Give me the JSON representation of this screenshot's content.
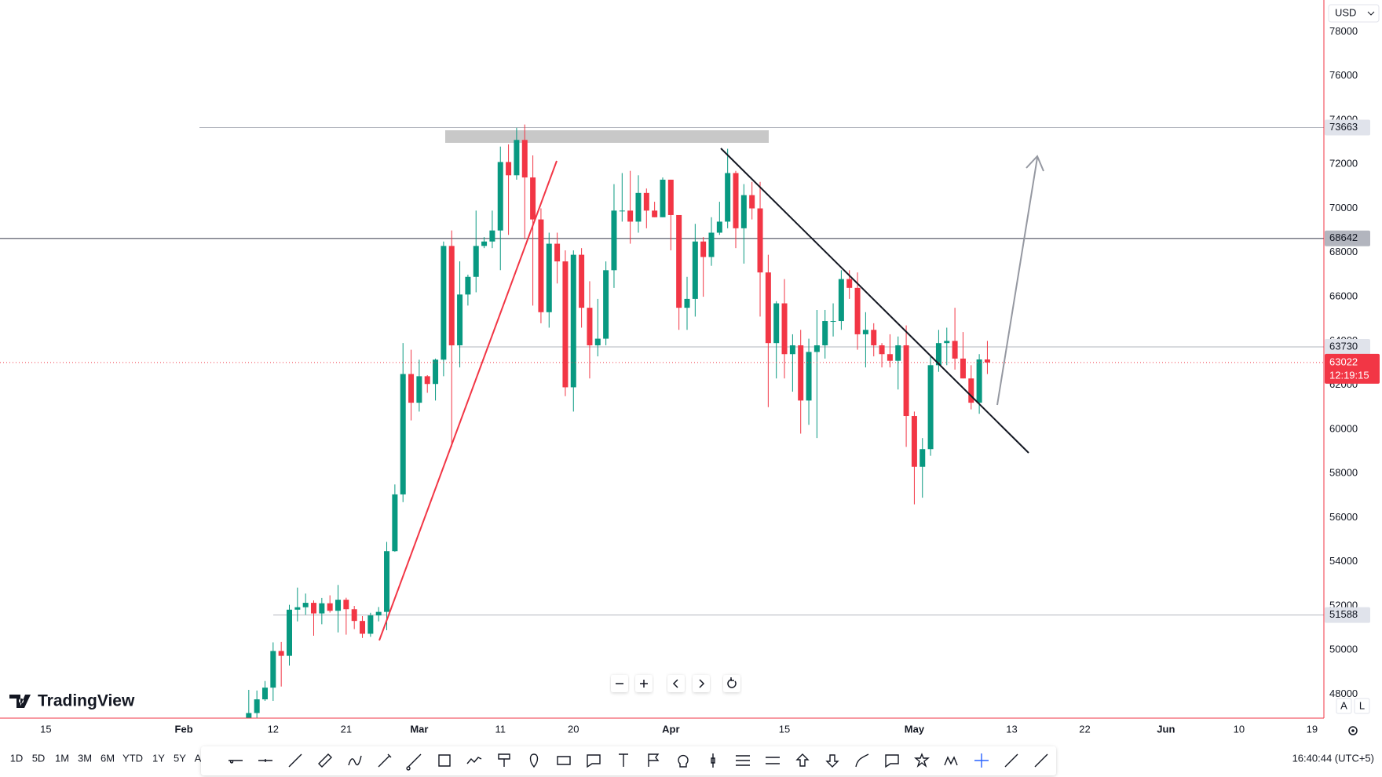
{
  "chart_data": {
    "type": "candlestick",
    "currency": "USD",
    "x": [
      40,
      41,
      42,
      43,
      44,
      45,
      46,
      47,
      48,
      49,
      50,
      51,
      52,
      53,
      54,
      55,
      56,
      57,
      58,
      59,
      60,
      61,
      62,
      63,
      64,
      65,
      66,
      67,
      68,
      69,
      70,
      71,
      72,
      73,
      74,
      75,
      76,
      77,
      78,
      79,
      80,
      81,
      82,
      83,
      84,
      85,
      86,
      87,
      88,
      89,
      90,
      91,
      92,
      93,
      94,
      95,
      96,
      97,
      98,
      99,
      100,
      101,
      102,
      103,
      104,
      105,
      106,
      107,
      108,
      109,
      110,
      111,
      112,
      113,
      114,
      115,
      116,
      117,
      118,
      119,
      120,
      121,
      122,
      123,
      124,
      125,
      126,
      127,
      128,
      129,
      130,
      131
    ],
    "open": [
      45290,
      47150,
      47770,
      48300,
      49960,
      49740,
      51830,
      51940,
      52140,
      51660,
      52120,
      51780,
      52280,
      51850,
      51320,
      50740,
      51570,
      51730,
      54480,
      57050,
      62500,
      61200,
      62400,
      62050,
      63150,
      68300,
      63800,
      66100,
      66900,
      68300,
      68500,
      69000,
      72100,
      71500,
      73100,
      71400,
      69500,
      65300,
      68400,
      67600,
      61900,
      67900,
      65500,
      63800,
      64100,
      67200,
      69900,
      69900,
      69400,
      70700,
      69900,
      69600,
      71300,
      69700,
      65500,
      65900,
      68500,
      67800,
      68900,
      69400,
      71600,
      69100,
      70600,
      70000,
      67100,
      63900,
      65700,
      63400,
      63800,
      61300,
      63500,
      63800,
      64900,
      64900,
      66800,
      66400,
      64300,
      64500,
      63800,
      63400,
      63100,
      63800,
      60600,
      58300,
      59100,
      62900,
      63900,
      64000,
      63200,
      62300,
      61200,
      63160
    ],
    "high": [
      48200,
      48170,
      48600,
      50350,
      50370,
      52050,
      52830,
      52560,
      52250,
      52360,
      52480,
      52950,
      52370,
      52000,
      51540,
      51690,
      51950,
      54900,
      57500,
      63900,
      63600,
      63150,
      62450,
      63200,
      68500,
      69000,
      67600,
      67000,
      69900,
      68700,
      69900,
      72800,
      72900,
      73650,
      73800,
      72400,
      70000,
      68900,
      68900,
      68100,
      68100,
      68200,
      66700,
      65900,
      67600,
      71100,
      71600,
      71700,
      71500,
      70900,
      70300,
      71400,
      71300,
      69700,
      66900,
      69300,
      68700,
      69600,
      70300,
      72700,
      71700,
      71100,
      71200,
      71200,
      67900,
      65800,
      66800,
      64300,
      64500,
      64100,
      65400,
      65400,
      65700,
      67200,
      67200,
      67100,
      65300,
      64800,
      63900,
      64300,
      64200,
      64700,
      60800,
      59600,
      63300,
      64500,
      64600,
      65500,
      64400,
      62900,
      63400,
      64000
    ],
    "low": [
      45250,
      46800,
      47700,
      47700,
      48350,
      49300,
      51300,
      51600,
      50650,
      51170,
      51700,
      50800,
      50700,
      50950,
      50550,
      50600,
      51300,
      50900,
      54450,
      56700,
      60400,
      60800,
      61650,
      61300,
      62400,
      59200,
      62800,
      65600,
      66200,
      68200,
      68200,
      67200,
      68800,
      71300,
      68600,
      65600,
      64800,
      64600,
      66600,
      61500,
      60800,
      64600,
      62300,
      63300,
      63800,
      66400,
      69400,
      68400,
      68900,
      69100,
      69600,
      69600,
      68100,
      64500,
      64500,
      65100,
      66000,
      67400,
      68800,
      69100,
      68200,
      67500,
      69500,
      65100,
      61000,
      62300,
      62300,
      61700,
      59800,
      60200,
      59600,
      63200,
      64200,
      64500,
      65900,
      63600,
      62800,
      63300,
      62800,
      62800,
      61800,
      59200,
      56600,
      56900,
      58800,
      62600,
      62900,
      62700,
      62300,
      60900,
      60700,
      62500
    ],
    "close": [
      47150,
      47770,
      48300,
      49960,
      49740,
      51830,
      51940,
      52140,
      51660,
      52120,
      51780,
      52280,
      51850,
      51320,
      50740,
      51570,
      51730,
      54480,
      57050,
      62500,
      61200,
      62400,
      62050,
      63150,
      68300,
      63800,
      66100,
      66900,
      68300,
      68500,
      69000,
      72100,
      71500,
      73100,
      71400,
      69500,
      65300,
      68400,
      67600,
      61900,
      67900,
      65500,
      63800,
      64100,
      67200,
      69900,
      69900,
      69400,
      70700,
      69900,
      69600,
      71300,
      69700,
      65500,
      65900,
      68500,
      67800,
      68900,
      69400,
      71600,
      69100,
      70600,
      70000,
      67100,
      63900,
      65700,
      63400,
      63800,
      61300,
      63500,
      63800,
      64900,
      64900,
      66800,
      66400,
      64300,
      64500,
      63800,
      63400,
      63100,
      63800,
      60600,
      58300,
      59100,
      62900,
      63900,
      64000,
      63200,
      62300,
      61200,
      63160,
      63022
    ],
    "up_color": "#089981",
    "down_color": "#f23645",
    "xlim": [
      9.35,
      172.46
    ],
    "ylim": [
      46919,
      79436
    ],
    "xticks": [
      15,
      {
        "value": 32,
        "label": "Feb"
      },
      {
        "value": 43,
        "label": "12"
      },
      {
        "value": 52,
        "label": "21"
      },
      {
        "value": 61,
        "label": "Mar"
      },
      {
        "value": 71,
        "label": "11"
      },
      {
        "value": 80,
        "label": "20"
      },
      {
        "value": 92,
        "label": "Apr"
      },
      {
        "value": 106,
        "label": "15"
      },
      {
        "value": 122,
        "label": "May"
      },
      {
        "value": 134,
        "label": "13"
      },
      {
        "value": 143,
        "label": "22"
      },
      {
        "value": 153,
        "label": "Jun"
      },
      {
        "value": 162,
        "label": "10"
      },
      {
        "value": 171,
        "label": "19"
      }
    ],
    "yticks": [
      48000,
      50000,
      52000,
      54000,
      56000,
      58000,
      60000,
      62000,
      64000,
      66000,
      68000,
      70000,
      72000,
      74000,
      76000,
      78000
    ],
    "grid": false,
    "levels": [
      73663,
      68642,
      63730,
      51588
    ],
    "last_price": 63022,
    "countdown": "12:19:15"
  },
  "ui": {
    "logo": "TradingView",
    "scale_buttons": [
      "A",
      "L"
    ],
    "timeframes": [
      "1D",
      "5D",
      "1M",
      "3M",
      "6M",
      "YTD",
      "1Y",
      "5Y",
      "A"
    ],
    "clock": "16:40:44 (UTC+5)"
  }
}
